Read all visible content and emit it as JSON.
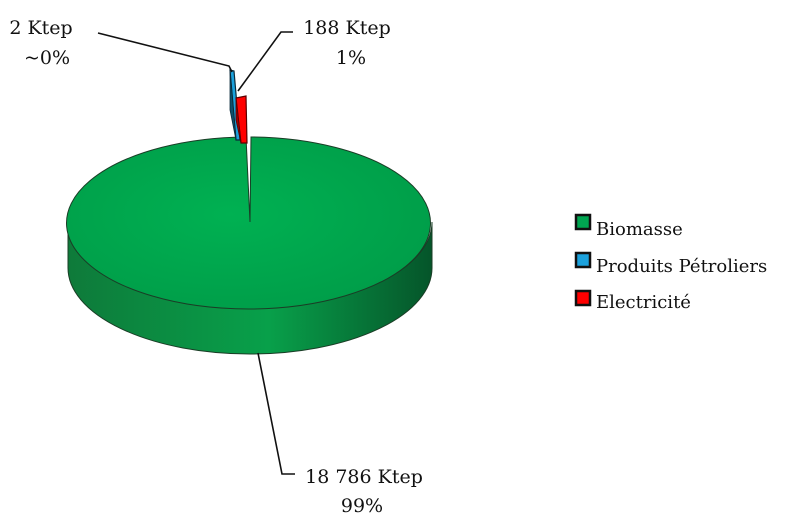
{
  "chart_data": {
    "type": "pie",
    "title": "",
    "slices": [
      {
        "name": "Biomasse",
        "value": 18786,
        "value_label": "18 786 Ktep",
        "pct_label": "99%",
        "color": "#00A651"
      },
      {
        "name": "Produits Pétroliers",
        "value": 2,
        "value_label": "2 Ktep",
        "pct_label": "~0%",
        "color": "#1BA1DC"
      },
      {
        "name": "Electricité",
        "value": 188,
        "value_label": "188 Ktep",
        "pct_label": "1%",
        "color": "#FF0000"
      }
    ],
    "unit": "Ktep",
    "style": "3d-exploded",
    "legend": {
      "position": "right"
    }
  }
}
